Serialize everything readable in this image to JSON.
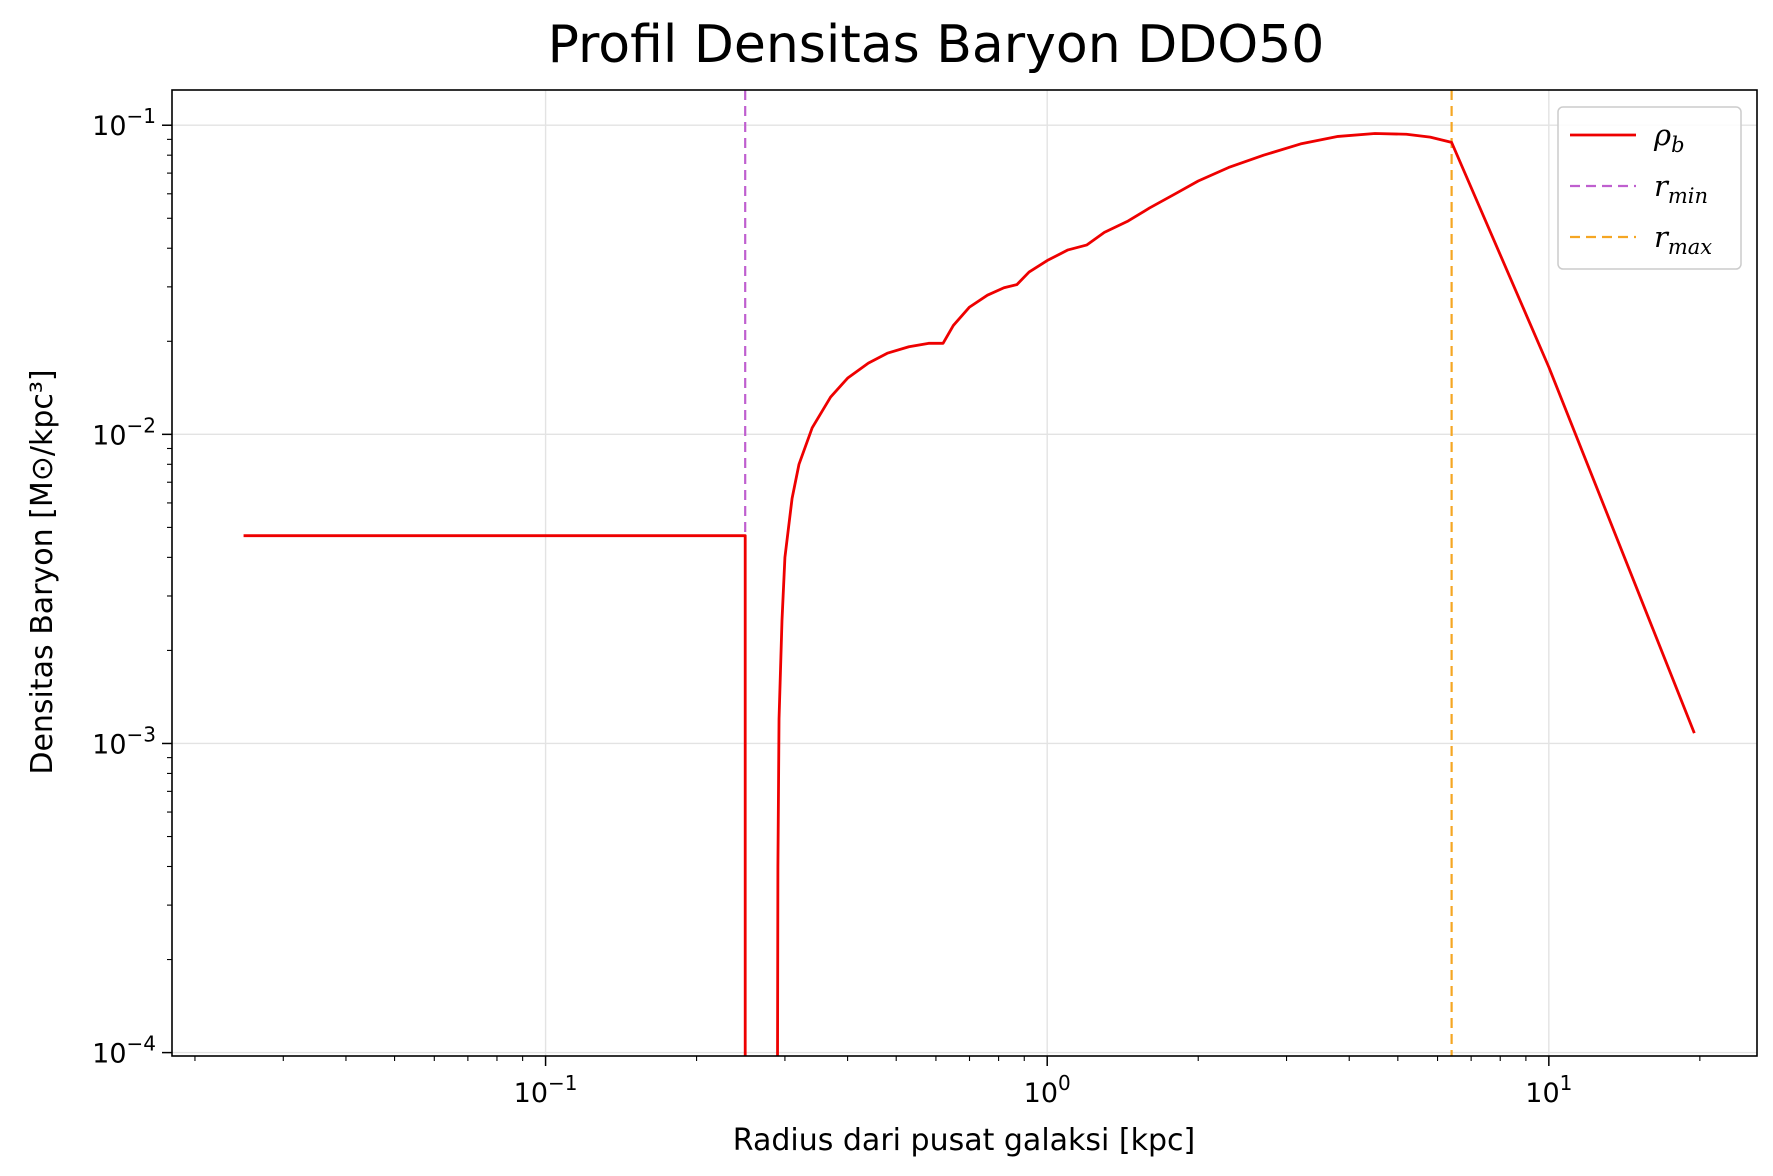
{
  "chart_data": {
    "type": "line",
    "title": "Profil Densitas Baryon DDO50",
    "xlabel": "Radius dari pusat galaksi [kpc]",
    "ylabel": "Densitas Baryon [M⊙/kpc³]",
    "x_scale": "log",
    "y_scale": "log",
    "xlim": [
      0.018,
      26
    ],
    "ylim": [
      9.75e-05,
      0.13
    ],
    "grid": true,
    "legend_position": "top-right",
    "x_ticks": [
      {
        "value": 0.1,
        "base": "10",
        "exp": "−1"
      },
      {
        "value": 1,
        "base": "10",
        "exp": "0"
      },
      {
        "value": 10,
        "base": "10",
        "exp": "1"
      }
    ],
    "y_ticks": [
      {
        "value": 0.0001,
        "base": "10",
        "exp": "−4"
      },
      {
        "value": 0.001,
        "base": "10",
        "exp": "−3"
      },
      {
        "value": 0.01,
        "base": "10",
        "exp": "−2"
      },
      {
        "value": 0.1,
        "base": "10",
        "exp": "−1"
      }
    ],
    "series": [
      {
        "name": "ρb",
        "legend_main": "ρ",
        "legend_sub": "b",
        "color": "#ee0000",
        "style": "solid",
        "segments": [
          [
            [
              0.025,
              0.0047
            ],
            [
              0.25,
              0.0047
            ],
            [
              0.25,
              9.75e-05
            ]
          ],
          [
            [
              0.29,
              9.75e-05
            ],
            [
              0.2905,
              0.0004
            ],
            [
              0.292,
              0.0012
            ],
            [
              0.296,
              0.0025
            ],
            [
              0.3,
              0.004
            ],
            [
              0.31,
              0.0062
            ],
            [
              0.32,
              0.008
            ],
            [
              0.34,
              0.0105
            ],
            [
              0.37,
              0.0132
            ],
            [
              0.4,
              0.0152
            ],
            [
              0.44,
              0.017
            ],
            [
              0.48,
              0.0183
            ],
            [
              0.53,
              0.0192
            ],
            [
              0.58,
              0.0197
            ],
            [
              0.62,
              0.0197
            ],
            [
              0.65,
              0.0225
            ],
            [
              0.7,
              0.0258
            ],
            [
              0.76,
              0.0282
            ],
            [
              0.82,
              0.0298
            ],
            [
              0.87,
              0.0305
            ],
            [
              0.92,
              0.0335
            ],
            [
              1.0,
              0.0365
            ],
            [
              1.1,
              0.0395
            ],
            [
              1.2,
              0.041
            ],
            [
              1.3,
              0.045
            ],
            [
              1.45,
              0.049
            ],
            [
              1.6,
              0.054
            ],
            [
              1.8,
              0.06
            ],
            [
              2.0,
              0.066
            ],
            [
              2.3,
              0.073
            ],
            [
              2.7,
              0.08
            ],
            [
              3.2,
              0.087
            ],
            [
              3.8,
              0.092
            ],
            [
              4.5,
              0.094
            ],
            [
              5.2,
              0.0935
            ],
            [
              5.8,
              0.0915
            ],
            [
              6.4,
              0.088
            ],
            [
              10.0,
              0.0165
            ],
            [
              19.5,
              0.00108
            ]
          ]
        ]
      },
      {
        "name": "rmin",
        "legend_main": "r",
        "legend_sub": "min",
        "color": "#bf5fcf",
        "style": "dashed",
        "x": 0.25
      },
      {
        "name": "rmax",
        "legend_main": "r",
        "legend_sub": "max",
        "color": "#f5a623",
        "style": "dashed",
        "x": 6.4
      }
    ]
  }
}
